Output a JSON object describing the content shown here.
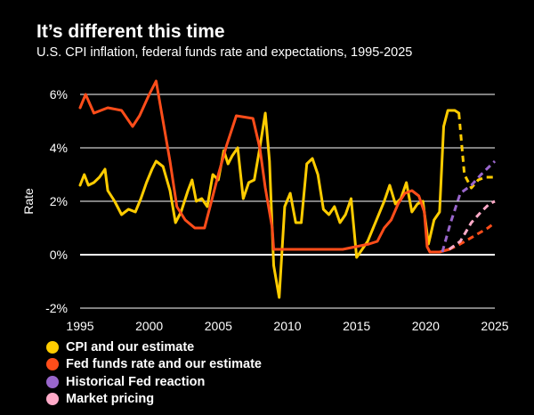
{
  "chart_data": {
    "type": "line",
    "title": "It’s different this time",
    "subtitle": "U.S. CPI inflation, federal funds rate and expectations, 1995-2025",
    "ylabel": "Rate",
    "xlim": [
      1995,
      2025
    ],
    "ylim": [
      -2,
      7
    ],
    "yticks": [
      {
        "value": 6,
        "label": "6%"
      },
      {
        "value": 4,
        "label": "4%"
      },
      {
        "value": 2,
        "label": "2%"
      },
      {
        "value": 0,
        "label": "0%"
      },
      {
        "value": -2,
        "label": "-2%"
      }
    ],
    "xticks": [
      {
        "value": 1995,
        "label": "1995"
      },
      {
        "value": 2000,
        "label": "2000"
      },
      {
        "value": 2005,
        "label": "2005"
      },
      {
        "value": 2010,
        "label": "2010"
      },
      {
        "value": 2015,
        "label": "2015"
      },
      {
        "value": 2020,
        "label": "2020"
      },
      {
        "value": 2025,
        "label": "2025"
      }
    ],
    "series": [
      {
        "name": "CPI and our estimate",
        "color": "#FFCC00",
        "x": [
          1995,
          1995.3,
          1995.6,
          1996,
          1996.4,
          1996.8,
          1997,
          1997.5,
          1998,
          1998.5,
          1999,
          1999.4,
          1999.8,
          2000.2,
          2000.5,
          2001,
          2001.5,
          2001.9,
          2002.3,
          2002.8,
          2003.1,
          2003.4,
          2003.8,
          2004.2,
          2004.6,
          2005,
          2005.4,
          2005.7,
          2006,
          2006.4,
          2006.8,
          2007.2,
          2007.6,
          2008,
          2008.4,
          2008.7,
          2009,
          2009.4,
          2009.8,
          2010.2,
          2010.6,
          2011,
          2011.4,
          2011.8,
          2012.2,
          2012.6,
          2013,
          2013.4,
          2013.8,
          2014.2,
          2014.6,
          2015,
          2015.4,
          2015.8,
          2016.2,
          2016.6,
          2017,
          2017.4,
          2017.8,
          2018.2,
          2018.6,
          2019,
          2019.4,
          2019.8,
          2020.2,
          2020.6,
          2021,
          2021.3,
          2021.6,
          2022.1,
          2022.4
        ],
        "values": [
          2.6,
          3.0,
          2.6,
          2.7,
          2.9,
          3.2,
          2.4,
          2.0,
          1.5,
          1.7,
          1.6,
          2.1,
          2.7,
          3.2,
          3.5,
          3.3,
          2.4,
          1.2,
          1.6,
          2.4,
          2.8,
          2.0,
          2.1,
          1.8,
          3.0,
          2.8,
          3.9,
          3.4,
          3.7,
          4.0,
          2.1,
          2.7,
          2.8,
          4.0,
          5.3,
          3.5,
          -0.4,
          -1.6,
          1.8,
          2.3,
          1.2,
          1.2,
          3.4,
          3.6,
          3.0,
          1.7,
          1.5,
          1.8,
          1.2,
          1.5,
          2.1,
          -0.1,
          0.2,
          0.5,
          1.0,
          1.5,
          2.0,
          2.6,
          1.9,
          2.1,
          2.7,
          1.6,
          1.9,
          2.0,
          0.4,
          1.3,
          1.6,
          4.8,
          5.4,
          5.4,
          5.3
        ]
      },
      {
        "name": "CPI and our estimate (estimate)",
        "color": "#FFCC00",
        "dashed": true,
        "x": [
          2022.4,
          2022.8,
          2023.3,
          2023.8,
          2024.3,
          2025
        ],
        "values": [
          5.3,
          3.0,
          2.5,
          2.8,
          2.9,
          2.9
        ]
      },
      {
        "name": "Fed funds rate and our estimate",
        "color": "#FF4D1A",
        "x": [
          1995,
          1995.4,
          1996,
          1997,
          1998,
          1998.8,
          1999.3,
          2000,
          2000.5,
          2001,
          2001.5,
          2002,
          2002.6,
          2003.3,
          2004,
          2004.5,
          2005,
          2005.6,
          2006.3,
          2007.5,
          2008,
          2008.4,
          2008.9,
          2009,
          2010,
          2012,
          2014,
          2015.9,
          2016.5,
          2017,
          2017.5,
          2018,
          2018.5,
          2019,
          2019.5,
          2019.9,
          2020.1,
          2020.3,
          2021,
          2021.7
        ],
        "values": [
          5.5,
          6.0,
          5.3,
          5.5,
          5.4,
          4.8,
          5.2,
          6.0,
          6.5,
          5.0,
          3.5,
          1.8,
          1.3,
          1.0,
          1.0,
          2.0,
          3.0,
          4.1,
          5.2,
          5.1,
          4.0,
          2.5,
          1.0,
          0.2,
          0.2,
          0.2,
          0.2,
          0.4,
          0.5,
          1.0,
          1.3,
          1.9,
          2.3,
          2.4,
          2.2,
          1.6,
          0.3,
          0.1,
          0.1,
          0.2
        ]
      },
      {
        "name": "Fed funds rate and our estimate (estimate)",
        "color": "#FF4D1A",
        "dashed": true,
        "x": [
          2021.7,
          2022.5,
          2023.5,
          2024.5,
          2025
        ],
        "values": [
          0.2,
          0.4,
          0.7,
          1.0,
          1.2
        ]
      },
      {
        "name": "Historical Fed reaction",
        "color": "#9966CC",
        "dashed": true,
        "x": [
          2021.2,
          2021.8,
          2022.5,
          2023.3,
          2024,
          2024.6,
          2025
        ],
        "values": [
          0.1,
          1.2,
          2.3,
          2.6,
          3.0,
          3.3,
          3.5
        ]
      },
      {
        "name": "Market pricing",
        "color": "#FFAAC8",
        "dashed": true,
        "x": [
          2021.7,
          2022.5,
          2023.3,
          2024,
          2024.6,
          2025
        ],
        "values": [
          0.2,
          0.5,
          1.2,
          1.6,
          1.9,
          2.0
        ]
      }
    ],
    "legend": [
      {
        "label": "CPI and our estimate",
        "color": "#FFCC00"
      },
      {
        "label": "Fed funds rate and our estimate",
        "color": "#FF4D1A"
      },
      {
        "label": "Historical Fed reaction",
        "color": "#9966CC"
      },
      {
        "label": "Market pricing",
        "color": "#FFAAC8"
      }
    ]
  }
}
